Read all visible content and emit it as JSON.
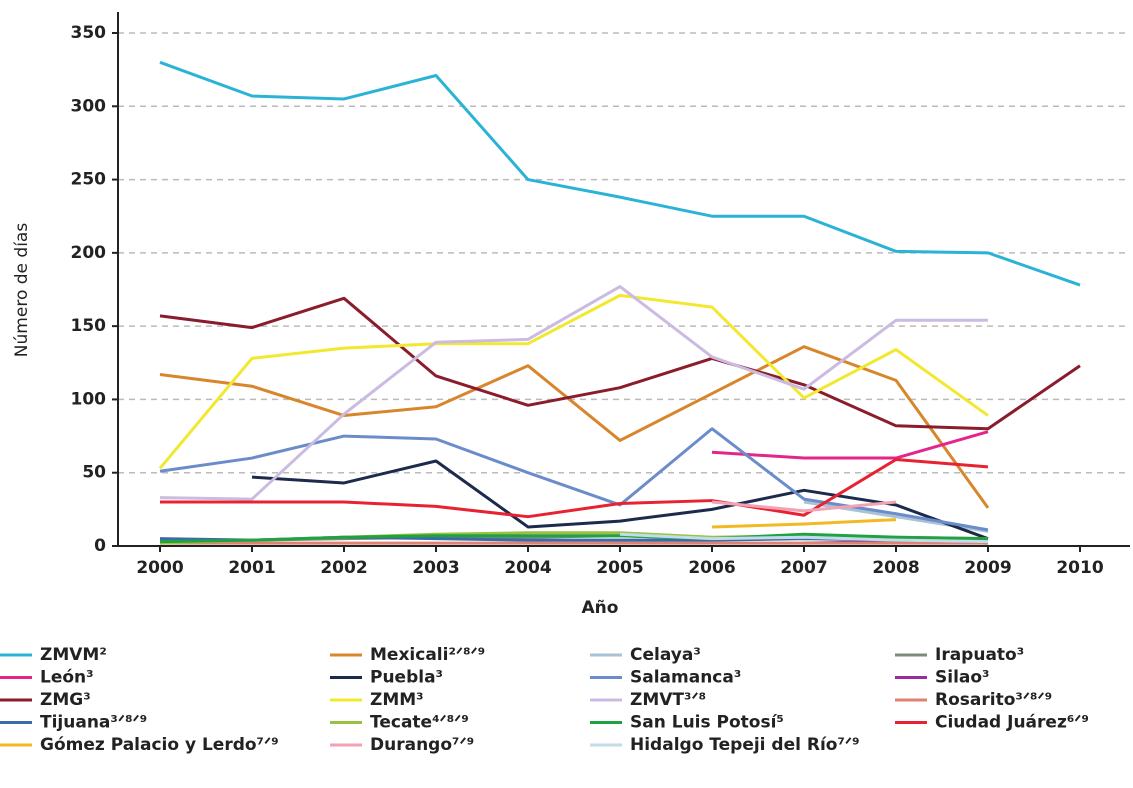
{
  "chart_data": {
    "type": "line",
    "x_label": "Año",
    "y_label": "Número de días",
    "categories": [
      "2000",
      "2001",
      "2002",
      "2003",
      "2004",
      "2005",
      "2006",
      "2007",
      "2008",
      "2009",
      "2010"
    ],
    "ylim": [
      0,
      350
    ],
    "yticks": [
      0,
      50,
      100,
      150,
      200,
      250,
      300,
      350
    ],
    "grid": true,
    "series": [
      {
        "name": "ZMVM²",
        "color": "#2bb3d6",
        "values": [
          330,
          307,
          305,
          321,
          250,
          238,
          225,
          225,
          201,
          200,
          178
        ]
      },
      {
        "name": "Mexicali²ᐟ⁸ᐟ⁹",
        "color": "#d8862c",
        "values": [
          117,
          109,
          89,
          95,
          123,
          72,
          104,
          136,
          113,
          26,
          null
        ]
      },
      {
        "name": "Celaya³",
        "color": "#a9c2d6",
        "values": [
          null,
          null,
          null,
          null,
          null,
          null,
          null,
          30,
          20,
          10,
          null
        ]
      },
      {
        "name": "Irapuato³",
        "color": "#7d8b7a",
        "values": [
          3,
          4,
          5,
          6,
          6,
          7,
          5,
          6,
          5,
          4,
          null
        ]
      },
      {
        "name": "León³",
        "color": "#e2268c",
        "values": [
          null,
          null,
          null,
          null,
          null,
          null,
          64,
          60,
          60,
          78,
          null
        ]
      },
      {
        "name": "Puebla³",
        "color": "#1c2b4c",
        "values": [
          null,
          47,
          43,
          58,
          13,
          17,
          25,
          38,
          28,
          5,
          null
        ]
      },
      {
        "name": "Salamanca³",
        "color": "#6b8ccb",
        "values": [
          51,
          60,
          75,
          73,
          50,
          28,
          80,
          32,
          22,
          11,
          null
        ]
      },
      {
        "name": "Silao³",
        "color": "#9b2a9b",
        "values": [
          null,
          null,
          null,
          null,
          null,
          null,
          null,
          2,
          3,
          2,
          null
        ]
      },
      {
        "name": "ZMG³",
        "color": "#8a1c2c",
        "values": [
          157,
          149,
          169,
          116,
          96,
          108,
          128,
          110,
          82,
          80,
          123
        ]
      },
      {
        "name": "ZMM³",
        "color": "#f2e830",
        "values": [
          53,
          128,
          135,
          138,
          138,
          171,
          163,
          101,
          134,
          89,
          null
        ]
      },
      {
        "name": "ZMVT³ᐟ⁸",
        "color": "#cbbbe2",
        "values": [
          33,
          32,
          90,
          139,
          141,
          177,
          129,
          107,
          154,
          154,
          null
        ]
      },
      {
        "name": "Rosarito³ᐟ⁸ᐟ⁹",
        "color": "#e08272",
        "values": [
          2,
          2,
          2,
          2,
          2,
          2,
          2,
          2,
          2,
          2,
          null
        ]
      },
      {
        "name": "Tijuana³ᐟ⁸ᐟ⁹",
        "color": "#3a6aaa",
        "values": [
          5,
          4,
          6,
          5,
          4,
          4,
          4,
          5,
          4,
          3,
          null
        ]
      },
      {
        "name": "Tecate⁴ᐟ⁸ᐟ⁹",
        "color": "#99c242",
        "values": [
          2,
          4,
          6,
          8,
          9,
          9,
          6,
          7,
          6,
          5,
          null
        ]
      },
      {
        "name": "San Luis Potosí⁵",
        "color": "#21a142",
        "values": [
          3,
          4,
          6,
          7,
          7,
          7,
          5,
          8,
          6,
          5,
          null
        ]
      },
      {
        "name": "Ciudad Juárez⁶ᐟ⁹",
        "color": "#e82232",
        "values": [
          30,
          30,
          30,
          27,
          20,
          29,
          31,
          21,
          59,
          54,
          null
        ]
      },
      {
        "name": "Gómez Palacio y Lerdo⁷ᐟ⁹",
        "color": "#f2b922",
        "values": [
          null,
          null,
          null,
          null,
          null,
          null,
          13,
          15,
          18,
          null,
          null
        ]
      },
      {
        "name": "Durango⁷ᐟ⁹",
        "color": "#f2a2b2",
        "values": [
          null,
          null,
          null,
          null,
          null,
          null,
          30,
          24,
          30,
          null,
          null
        ]
      },
      {
        "name": "Hidalgo Tepeji del Río⁷ᐟ⁹",
        "color": "#c2dcea",
        "values": [
          null,
          null,
          null,
          null,
          null,
          8,
          5,
          6,
          4,
          3,
          null
        ]
      }
    ]
  }
}
